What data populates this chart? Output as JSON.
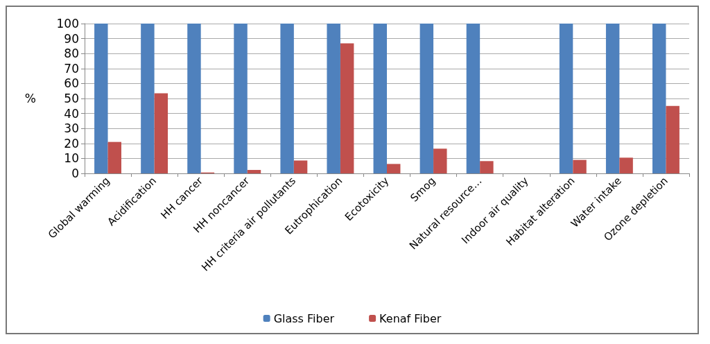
{
  "chart_data": {
    "type": "bar",
    "ylabel": "%",
    "categories": [
      "Global warming",
      "Acidification",
      "HH cancer",
      "HH noncancer",
      "HH criteria air pollutants",
      "Eutrophication",
      "Ecotoxicity",
      "Smog",
      "Natural resource…",
      "Indoor air quality",
      "Habitat alteration",
      "Water intake",
      "Ozone depletion"
    ],
    "series": [
      {
        "name": "Glass Fiber",
        "color": "#4f81bd",
        "values": [
          100,
          100,
          100,
          100,
          100,
          100,
          100,
          100,
          100,
          null,
          100,
          100,
          100
        ]
      },
      {
        "name": "Kenaf Fiber",
        "color": "#c0504d",
        "values": [
          21,
          53.5,
          0.6,
          2.3,
          8.6,
          86.8,
          6.3,
          16.5,
          8.2,
          null,
          9,
          10.5,
          45
        ]
      }
    ],
    "ylim": [
      0,
      100
    ],
    "yticks": [
      0,
      10,
      20,
      30,
      40,
      50,
      60,
      70,
      80,
      90,
      100
    ],
    "grid": "y",
    "legend": "bottom"
  }
}
